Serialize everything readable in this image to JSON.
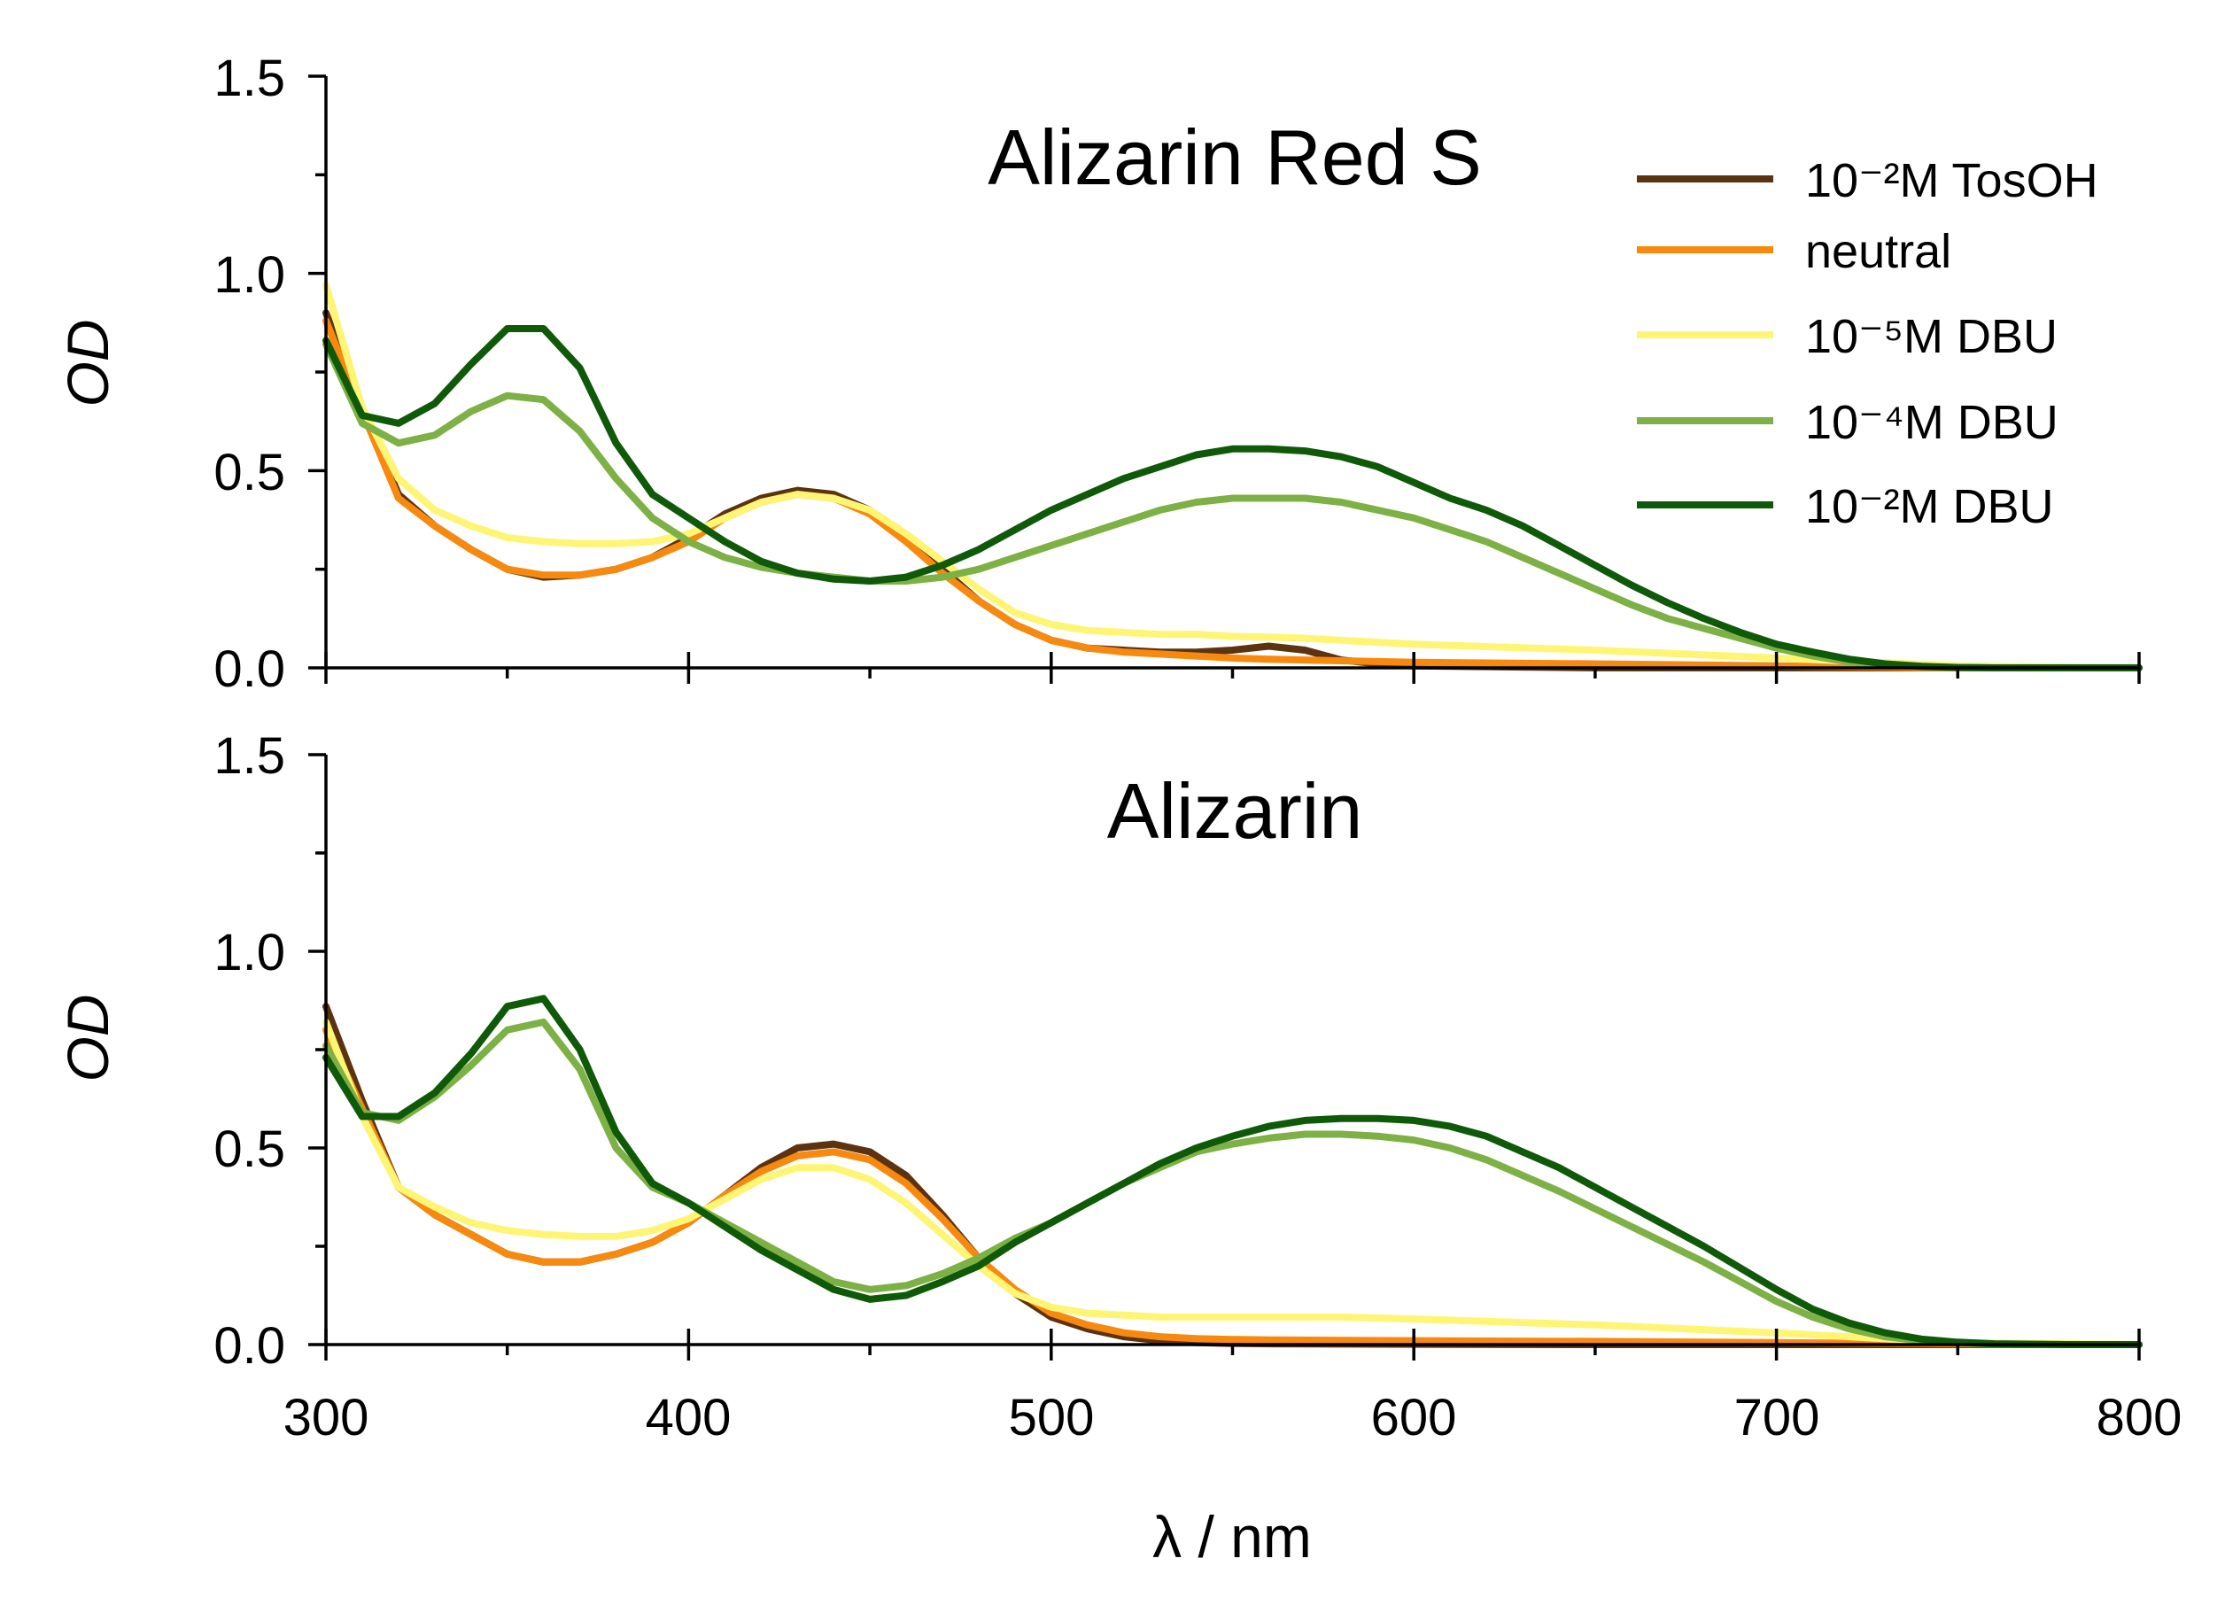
{
  "chart_data": [
    {
      "type": "line",
      "title": "Alizarin Red S",
      "ylabel": "OD",
      "xlim": [
        300,
        800
      ],
      "ylim": [
        0,
        1.5
      ],
      "yticks": [
        "0.0",
        "0.5",
        "1.0",
        "1.5"
      ],
      "series": [
        {
          "name": "10⁻²M TosOH",
          "color": "#5c3310",
          "x": [
            300,
            310,
            320,
            330,
            340,
            350,
            360,
            370,
            380,
            390,
            400,
            410,
            420,
            430,
            440,
            450,
            460,
            470,
            480,
            490,
            500,
            510,
            520,
            530,
            540,
            550,
            560,
            570,
            580,
            590,
            600,
            650,
            700,
            750,
            800
          ],
          "y": [
            0.9,
            0.66,
            0.44,
            0.36,
            0.3,
            0.25,
            0.23,
            0.235,
            0.25,
            0.28,
            0.33,
            0.39,
            0.43,
            0.45,
            0.44,
            0.4,
            0.33,
            0.25,
            0.17,
            0.11,
            0.07,
            0.05,
            0.045,
            0.04,
            0.04,
            0.045,
            0.055,
            0.045,
            0.02,
            0.01,
            0.005,
            0,
            0,
            0,
            0
          ]
        },
        {
          "name": "neutral",
          "color": "#f7890f",
          "x": [
            300,
            310,
            320,
            330,
            340,
            350,
            360,
            370,
            380,
            390,
            400,
            410,
            420,
            430,
            440,
            450,
            460,
            470,
            480,
            490,
            500,
            510,
            520,
            530,
            540,
            550,
            560,
            570,
            580,
            590,
            600,
            650,
            700,
            750,
            800
          ],
          "y": [
            0.88,
            0.65,
            0.43,
            0.36,
            0.3,
            0.25,
            0.235,
            0.235,
            0.25,
            0.28,
            0.32,
            0.38,
            0.42,
            0.44,
            0.43,
            0.39,
            0.32,
            0.24,
            0.17,
            0.11,
            0.07,
            0.05,
            0.04,
            0.035,
            0.03,
            0.025,
            0.022,
            0.02,
            0.018,
            0.016,
            0.014,
            0.01,
            0.005,
            0,
            0
          ]
        },
        {
          "name": "10⁻⁵M DBU",
          "color": "#fef575",
          "x": [
            300,
            310,
            320,
            330,
            340,
            350,
            360,
            370,
            380,
            390,
            400,
            410,
            420,
            430,
            440,
            450,
            460,
            470,
            480,
            490,
            500,
            510,
            520,
            530,
            540,
            550,
            560,
            570,
            580,
            590,
            600,
            650,
            700,
            750,
            800
          ],
          "y": [
            0.97,
            0.66,
            0.48,
            0.4,
            0.36,
            0.33,
            0.32,
            0.315,
            0.315,
            0.32,
            0.34,
            0.38,
            0.42,
            0.44,
            0.43,
            0.4,
            0.34,
            0.27,
            0.2,
            0.14,
            0.11,
            0.095,
            0.09,
            0.085,
            0.085,
            0.08,
            0.078,
            0.075,
            0.07,
            0.065,
            0.06,
            0.045,
            0.025,
            0.005,
            0
          ]
        },
        {
          "name": "10⁻⁴M DBU",
          "color": "#7db145",
          "x": [
            300,
            310,
            320,
            330,
            340,
            350,
            360,
            370,
            380,
            390,
            400,
            410,
            420,
            430,
            440,
            450,
            460,
            470,
            480,
            490,
            500,
            510,
            520,
            530,
            540,
            550,
            560,
            570,
            580,
            590,
            600,
            610,
            620,
            630,
            640,
            650,
            660,
            670,
            680,
            690,
            700,
            710,
            720,
            730,
            740,
            750,
            760,
            780,
            800
          ],
          "y": [
            0.82,
            0.62,
            0.57,
            0.59,
            0.65,
            0.69,
            0.68,
            0.6,
            0.48,
            0.38,
            0.32,
            0.28,
            0.255,
            0.24,
            0.23,
            0.22,
            0.22,
            0.23,
            0.25,
            0.28,
            0.31,
            0.34,
            0.37,
            0.4,
            0.42,
            0.43,
            0.43,
            0.43,
            0.42,
            0.4,
            0.38,
            0.35,
            0.32,
            0.28,
            0.24,
            0.2,
            0.16,
            0.125,
            0.1,
            0.075,
            0.05,
            0.03,
            0.015,
            0.007,
            0.003,
            0.001,
            0,
            0,
            0
          ]
        },
        {
          "name": "10⁻²M DBU",
          "color": "#0f5a08",
          "x": [
            300,
            310,
            320,
            330,
            340,
            350,
            360,
            370,
            380,
            390,
            400,
            410,
            420,
            430,
            440,
            450,
            460,
            470,
            480,
            490,
            500,
            510,
            520,
            530,
            540,
            550,
            560,
            570,
            580,
            590,
            600,
            610,
            620,
            630,
            640,
            650,
            660,
            670,
            680,
            690,
            700,
            710,
            720,
            730,
            740,
            750,
            760,
            780,
            800
          ],
          "y": [
            0.83,
            0.64,
            0.62,
            0.67,
            0.77,
            0.86,
            0.86,
            0.76,
            0.57,
            0.44,
            0.38,
            0.32,
            0.27,
            0.24,
            0.225,
            0.22,
            0.23,
            0.26,
            0.3,
            0.35,
            0.4,
            0.44,
            0.48,
            0.51,
            0.54,
            0.555,
            0.555,
            0.55,
            0.535,
            0.51,
            0.47,
            0.43,
            0.4,
            0.36,
            0.31,
            0.26,
            0.21,
            0.165,
            0.125,
            0.09,
            0.06,
            0.04,
            0.022,
            0.01,
            0.004,
            0.001,
            0,
            0,
            0
          ]
        }
      ]
    },
    {
      "type": "line",
      "title": "Alizarin",
      "xlabel": "λ / nm",
      "ylabel": "OD",
      "xlim": [
        300,
        800
      ],
      "ylim": [
        0,
        1.5
      ],
      "xticks": [
        "300",
        "400",
        "500",
        "600",
        "700",
        "800"
      ],
      "yticks": [
        "0.0",
        "0.5",
        "1.0",
        "1.5"
      ],
      "series": [
        {
          "name": "10⁻²M TosOH",
          "color": "#5c3310",
          "x": [
            300,
            310,
            320,
            330,
            340,
            350,
            360,
            370,
            380,
            390,
            400,
            410,
            420,
            430,
            440,
            450,
            460,
            470,
            480,
            490,
            500,
            510,
            520,
            530,
            540,
            550,
            560,
            600,
            650,
            700,
            750,
            800
          ],
          "y": [
            0.86,
            0.62,
            0.4,
            0.33,
            0.28,
            0.23,
            0.21,
            0.21,
            0.23,
            0.26,
            0.31,
            0.38,
            0.45,
            0.5,
            0.51,
            0.49,
            0.43,
            0.33,
            0.22,
            0.13,
            0.07,
            0.04,
            0.02,
            0.01,
            0.005,
            0.003,
            0.002,
            0.001,
            0,
            0,
            0,
            0
          ]
        },
        {
          "name": "neutral",
          "color": "#f7890f",
          "x": [
            300,
            310,
            320,
            330,
            340,
            350,
            360,
            370,
            380,
            390,
            400,
            410,
            420,
            430,
            440,
            450,
            460,
            470,
            480,
            490,
            500,
            510,
            520,
            530,
            540,
            550,
            560,
            600,
            650,
            700,
            750,
            800
          ],
          "y": [
            0.8,
            0.6,
            0.4,
            0.33,
            0.28,
            0.23,
            0.21,
            0.21,
            0.23,
            0.26,
            0.31,
            0.38,
            0.44,
            0.48,
            0.49,
            0.47,
            0.41,
            0.32,
            0.22,
            0.14,
            0.08,
            0.05,
            0.03,
            0.02,
            0.015,
            0.013,
            0.012,
            0.01,
            0.008,
            0.005,
            0.002,
            0
          ]
        },
        {
          "name": "10⁻⁵M DBU",
          "color": "#fef575",
          "x": [
            300,
            310,
            320,
            330,
            340,
            350,
            360,
            370,
            380,
            390,
            400,
            410,
            420,
            430,
            440,
            450,
            460,
            470,
            480,
            490,
            500,
            510,
            520,
            530,
            540,
            550,
            560,
            580,
            600,
            650,
            700,
            750,
            800
          ],
          "y": [
            0.82,
            0.58,
            0.4,
            0.35,
            0.31,
            0.29,
            0.28,
            0.275,
            0.275,
            0.29,
            0.32,
            0.37,
            0.42,
            0.45,
            0.45,
            0.42,
            0.36,
            0.28,
            0.2,
            0.13,
            0.095,
            0.08,
            0.075,
            0.07,
            0.07,
            0.07,
            0.07,
            0.07,
            0.065,
            0.05,
            0.03,
            0.005,
            0
          ]
        },
        {
          "name": "10⁻⁴M DBU",
          "color": "#7db145",
          "x": [
            300,
            310,
            320,
            330,
            340,
            350,
            360,
            370,
            380,
            390,
            400,
            410,
            420,
            430,
            440,
            450,
            460,
            470,
            480,
            490,
            500,
            510,
            520,
            530,
            540,
            550,
            560,
            570,
            580,
            590,
            600,
            610,
            620,
            630,
            640,
            650,
            660,
            670,
            680,
            690,
            700,
            710,
            720,
            730,
            740,
            750,
            760,
            780,
            800
          ],
          "y": [
            0.76,
            0.59,
            0.57,
            0.63,
            0.71,
            0.8,
            0.82,
            0.7,
            0.5,
            0.4,
            0.36,
            0.31,
            0.26,
            0.21,
            0.16,
            0.14,
            0.15,
            0.18,
            0.22,
            0.27,
            0.31,
            0.36,
            0.41,
            0.45,
            0.49,
            0.51,
            0.525,
            0.535,
            0.535,
            0.53,
            0.52,
            0.5,
            0.47,
            0.43,
            0.39,
            0.345,
            0.3,
            0.255,
            0.21,
            0.16,
            0.11,
            0.07,
            0.04,
            0.02,
            0.01,
            0.004,
            0.001,
            0,
            0
          ]
        },
        {
          "name": "10⁻²M DBU",
          "color": "#0f5a08",
          "x": [
            300,
            310,
            320,
            330,
            340,
            350,
            360,
            370,
            380,
            390,
            400,
            410,
            420,
            430,
            440,
            450,
            460,
            470,
            480,
            490,
            500,
            510,
            520,
            530,
            540,
            550,
            560,
            570,
            580,
            590,
            600,
            610,
            620,
            630,
            640,
            650,
            660,
            670,
            680,
            690,
            700,
            710,
            720,
            730,
            740,
            750,
            760,
            780,
            800
          ],
          "y": [
            0.73,
            0.58,
            0.58,
            0.64,
            0.74,
            0.86,
            0.88,
            0.75,
            0.54,
            0.41,
            0.36,
            0.3,
            0.24,
            0.19,
            0.14,
            0.115,
            0.125,
            0.16,
            0.2,
            0.26,
            0.31,
            0.36,
            0.41,
            0.46,
            0.5,
            0.53,
            0.555,
            0.57,
            0.575,
            0.575,
            0.57,
            0.555,
            0.53,
            0.49,
            0.45,
            0.4,
            0.35,
            0.3,
            0.25,
            0.195,
            0.14,
            0.09,
            0.055,
            0.03,
            0.014,
            0.006,
            0.002,
            0,
            0
          ]
        }
      ]
    }
  ],
  "legend": {
    "location": "top-right",
    "items": [
      {
        "name": "10⁻²M TosOH",
        "color": "#5c3310"
      },
      {
        "name": "neutral",
        "color": "#f7890f"
      },
      {
        "name": "10⁻⁵M DBU",
        "color": "#fef575"
      },
      {
        "name": "10⁻⁴M DBU",
        "color": "#7db145"
      },
      {
        "name": "10⁻²M DBU",
        "color": "#0f5a08"
      }
    ]
  }
}
